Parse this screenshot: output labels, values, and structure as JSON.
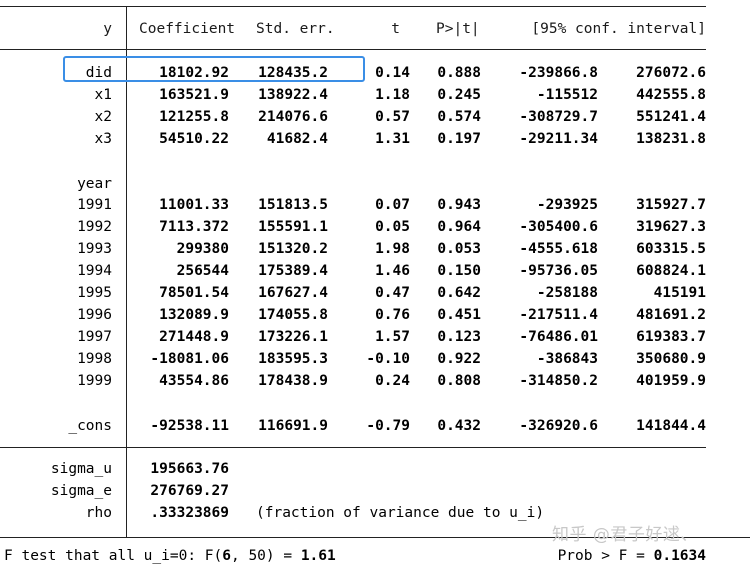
{
  "header": {
    "y": "y",
    "coef": "Coefficient",
    "se": "Std. err.",
    "t": "t",
    "p": "P>|t|",
    "ci": "[95% conf. interval]"
  },
  "rows": [
    {
      "label": "did",
      "coef": "18102.92",
      "se": "128435.2",
      "t": "0.14",
      "p": "0.888",
      "lo": "-239866.8",
      "hi": "276072.6"
    },
    {
      "label": "x1",
      "coef": "163521.9",
      "se": "138922.4",
      "t": "1.18",
      "p": "0.245",
      "lo": "-115512",
      "hi": "442555.8"
    },
    {
      "label": "x2",
      "coef": "121255.8",
      "se": "214076.6",
      "t": "0.57",
      "p": "0.574",
      "lo": "-308729.7",
      "hi": "551241.4"
    },
    {
      "label": "x3",
      "coef": "54510.22",
      "se": "41682.4",
      "t": "1.31",
      "p": "0.197",
      "lo": "-29211.34",
      "hi": "138231.8"
    },
    {
      "label": "year",
      "coef": "",
      "se": "",
      "t": "",
      "p": "",
      "lo": "",
      "hi": ""
    },
    {
      "label": "1991",
      "coef": "11001.33",
      "se": "151813.5",
      "t": "0.07",
      "p": "0.943",
      "lo": "-293925",
      "hi": "315927.7"
    },
    {
      "label": "1992",
      "coef": "7113.372",
      "se": "155591.1",
      "t": "0.05",
      "p": "0.964",
      "lo": "-305400.6",
      "hi": "319627.3"
    },
    {
      "label": "1993",
      "coef": "299380",
      "se": "151320.2",
      "t": "1.98",
      "p": "0.053",
      "lo": "-4555.618",
      "hi": "603315.5"
    },
    {
      "label": "1994",
      "coef": "256544",
      "se": "175389.4",
      "t": "1.46",
      "p": "0.150",
      "lo": "-95736.05",
      "hi": "608824.1"
    },
    {
      "label": "1995",
      "coef": "78501.54",
      "se": "167627.4",
      "t": "0.47",
      "p": "0.642",
      "lo": "-258188",
      "hi": "415191"
    },
    {
      "label": "1996",
      "coef": "132089.9",
      "se": "174055.8",
      "t": "0.76",
      "p": "0.451",
      "lo": "-217511.4",
      "hi": "481691.2"
    },
    {
      "label": "1997",
      "coef": "271448.9",
      "se": "173226.1",
      "t": "1.57",
      "p": "0.123",
      "lo": "-76486.01",
      "hi": "619383.7"
    },
    {
      "label": "1998",
      "coef": "-18081.06",
      "se": "183595.3",
      "t": "-0.10",
      "p": "0.922",
      "lo": "-386843",
      "hi": "350680.9"
    },
    {
      "label": "1999",
      "coef": "43554.86",
      "se": "178438.9",
      "t": "0.24",
      "p": "0.808",
      "lo": "-314850.2",
      "hi": "401959.9"
    },
    {
      "label": "_cons",
      "coef": "-92538.11",
      "se": "116691.9",
      "t": "-0.79",
      "p": "0.432",
      "lo": "-326920.6",
      "hi": "141844.4"
    }
  ],
  "stats": [
    {
      "label": "sigma_u",
      "value": "195663.76",
      "note": ""
    },
    {
      "label": "sigma_e",
      "value": "276769.27",
      "note": ""
    },
    {
      "label": "rho",
      "value": ".33323869",
      "note": "(fraction of variance due to u_i)"
    }
  ],
  "footer": {
    "ftest_label": "F test that all u_i=0: F(",
    "ftest_df1": "6",
    "ftest_sep": ", 50) = ",
    "ftest_value": "1.61",
    "prob_label": "Prob > F = ",
    "prob_value": "0.1634"
  },
  "watermark": "知乎 @君子好逑、"
}
